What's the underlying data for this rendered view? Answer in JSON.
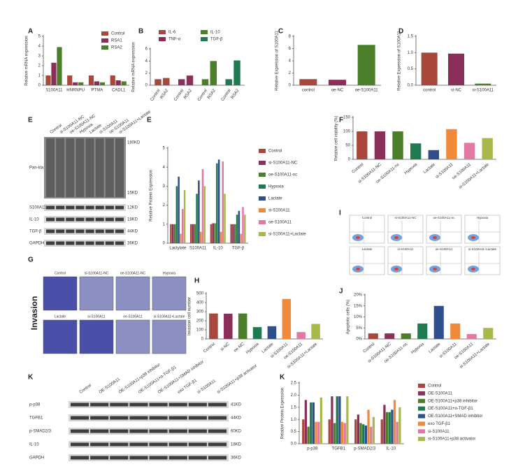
{
  "chart_data": [
    {
      "type": "bar",
      "panel": "A",
      "ylabel": "Relative mRNA expression",
      "categories": [
        "S100A11",
        "HNRNPU",
        "PTMA",
        "CADL1"
      ],
      "series": [
        {
          "name": "Control",
          "color": "#a8473b",
          "values": [
            1,
            1,
            1,
            1
          ]
        },
        {
          "name": "RSA1",
          "color": "#8a2f5a",
          "values": [
            2.3,
            0.3,
            0.4,
            0.5
          ]
        },
        {
          "name": "RSA2",
          "color": "#4c7f2a",
          "values": [
            3.9,
            0.3,
            0.3,
            0.4
          ]
        }
      ],
      "ylim": [
        0,
        5
      ],
      "yticks": [
        0,
        1,
        2,
        3,
        4,
        5
      ],
      "legend": "upper right"
    },
    {
      "type": "bar",
      "panel": "B",
      "ylabel": "Relative mRNA expression",
      "series": [
        {
          "name": "IL-6",
          "color": "#a8473b",
          "categories": [
            "Control",
            "RSA2"
          ],
          "values": [
            1,
            1.2
          ]
        },
        {
          "name": "TNF-α",
          "color": "#8a2f5a",
          "categories": [
            "Control",
            "RSA2"
          ],
          "values": [
            1,
            1.6
          ]
        },
        {
          "name": "IL-10",
          "color": "#4c7f2a",
          "categories": [
            "Control",
            "RSA2"
          ],
          "values": [
            1,
            4
          ]
        },
        {
          "name": "TGF-β",
          "color": "#1f7a52",
          "categories": [
            "Control",
            "RSA2"
          ],
          "values": [
            1,
            4.1
          ]
        }
      ],
      "ylim": [
        0,
        6
      ],
      "yticks": [
        0,
        2,
        4,
        6
      ],
      "legend": "top"
    },
    {
      "type": "bar",
      "panel": "C",
      "ylabel": "Relative Expression of S100A11",
      "categories": [
        "control",
        "oe-NC",
        "oe-S100A11"
      ],
      "values": [
        1,
        0.9,
        6.6
      ],
      "colors": [
        "#a8473b",
        "#8a2f5a",
        "#4c7f2a"
      ],
      "ylim": [
        0,
        8
      ],
      "yticks": [
        0,
        2,
        4,
        6,
        8
      ]
    },
    {
      "type": "bar",
      "panel": "D",
      "ylabel": "Relative Expression of S100A11",
      "categories": [
        "control",
        "si-NC",
        "si-S100A11"
      ],
      "values": [
        1,
        0.97,
        0.05
      ],
      "colors": [
        "#a8473b",
        "#8a2f5a",
        "#4c7f2a"
      ],
      "ylim": [
        0,
        1.5
      ],
      "yticks": [
        {
          "value": 0,
          "label": "0.0"
        },
        {
          "value": 0.5,
          "label": "0.5"
        },
        {
          "value": 1,
          "label": "1.0"
        },
        {
          "value": 1.5,
          "label": "1.5"
        }
      ]
    },
    {
      "type": "bar",
      "panel": "E",
      "ylabel": "Relative Protein Expression",
      "categories": [
        "Lactylate",
        "S100A11",
        "IL-10",
        "TGF-β"
      ],
      "series": [
        {
          "name": "Control",
          "color": "#a8473b",
          "values": [
            1,
            1,
            1,
            1
          ]
        },
        {
          "name": "si-S100A11-NC",
          "color": "#8a2f5a",
          "values": [
            1,
            1,
            1.05,
            1
          ]
        },
        {
          "name": "oe-S100A11-nc",
          "color": "#4c7f2a",
          "values": [
            1,
            1,
            1.05,
            1
          ]
        },
        {
          "name": "Hypoxia",
          "color": "#1f7a52",
          "values": [
            3,
            2.6,
            4.2,
            1.5
          ]
        },
        {
          "name": "Lactate",
          "color": "#2f4f8c",
          "values": [
            3.5,
            3.3,
            4.4,
            1.7
          ]
        },
        {
          "name": "si-S100A11",
          "color": "#f0893a",
          "values": [
            0.5,
            0.6,
            0.6,
            0.5
          ]
        },
        {
          "name": "oe-S100A11",
          "color": "#e07aa2",
          "values": [
            1.8,
            3.9,
            4.3,
            1.9
          ]
        },
        {
          "name": "si-S100A11+Lactate",
          "color": "#a9b84b",
          "values": [
            2.8,
            3,
            2.6,
            1.5
          ]
        }
      ],
      "ylim": [
        0,
        5
      ],
      "yticks": [
        0,
        1,
        2,
        3,
        4,
        5
      ],
      "legend": "right"
    },
    {
      "type": "bar",
      "panel": "F",
      "ylabel": "Relative cell viability (%)",
      "categories": [
        "Control",
        "si-S100A11-NC",
        "oe-S100A11-nc",
        "Hypoxia",
        "Lactate",
        "si-S100A11",
        "oe-S100A11",
        "si-S100A11+Lactate"
      ],
      "values": [
        100,
        100,
        100,
        57,
        33,
        108,
        59,
        76
      ],
      "colors": [
        "#a8473b",
        "#8a2f5a",
        "#4c7f2a",
        "#1f7a52",
        "#2f4f8c",
        "#f0893a",
        "#e07aa2",
        "#a9b84b"
      ],
      "ylim": [
        0,
        150
      ],
      "yticks": [
        0,
        50,
        100,
        150
      ]
    },
    {
      "type": "bar",
      "panel": "H",
      "ylabel": "Invasion cell number",
      "categories": [
        "Control",
        "si-NC",
        "oe-NC",
        "Hypoxia",
        "Lactate",
        "si-S100A11",
        "oe-S100A11",
        "si-S100A11+Lactate"
      ],
      "values": [
        280,
        278,
        280,
        130,
        140,
        440,
        75,
        165
      ],
      "colors": [
        "#a8473b",
        "#8a2f5a",
        "#4c7f2a",
        "#1f7a52",
        "#2f4f8c",
        "#f0893a",
        "#e07aa2",
        "#a9b84b"
      ],
      "ylim": [
        0,
        500
      ],
      "yticks": [
        0,
        100,
        200,
        300,
        400,
        500
      ]
    },
    {
      "type": "bar",
      "panel": "J",
      "ylabel": "Apoptotic cells (%)",
      "categories": [
        "Control",
        "si-S100A11-NC",
        "oe-S100A11-nc",
        "Hypoxia",
        "Lactate",
        "si-S100A11",
        "oe-S100A11",
        "si-S100A11+Lactate"
      ],
      "values": [
        2.5,
        2.5,
        2.5,
        7,
        15,
        7,
        2.2,
        5
      ],
      "colors": [
        "#a8473b",
        "#8a2f5a",
        "#4c7f2a",
        "#1f7a52",
        "#2f4f8c",
        "#f0893a",
        "#e07aa2",
        "#a9b84b"
      ],
      "ylim": [
        0,
        20
      ],
      "yticks": [
        {
          "value": 0,
          "label": "0%"
        },
        {
          "value": 5,
          "label": "5%"
        },
        {
          "value": 10,
          "label": "10%"
        },
        {
          "value": 15,
          "label": "15%"
        },
        {
          "value": 20,
          "label": "20%"
        }
      ]
    },
    {
      "type": "bar",
      "panel": "K",
      "ylabel": "Relative Protein Expression",
      "categories": [
        "p-p38",
        "TGFB1",
        "p-SMAD2/3",
        "IL-10"
      ],
      "series": [
        {
          "name": "Control",
          "color": "#a8473b",
          "values": [
            1,
            1,
            1,
            1
          ]
        },
        {
          "name": "OE-S100A11",
          "color": "#8a2f5a",
          "values": [
            1.8,
            1.95,
            1.2,
            1.6
          ]
        },
        {
          "name": "OE-S100A11+p38 inhibitor",
          "color": "#4c7f2a",
          "values": [
            0.7,
            0.85,
            0.85,
            1.3
          ]
        },
        {
          "name": "OE-S100A11+α-TGF-β1",
          "color": "#1f7a52",
          "values": [
            1.7,
            1.95,
            0.8,
            1.3
          ]
        },
        {
          "name": "OE-S100A11+SMAD inhibitor",
          "color": "#2f4f8c",
          "values": [
            1.7,
            1.95,
            0.75,
            1.4
          ]
        },
        {
          "name": "exo TGF-β1",
          "color": "#f0893a",
          "values": [
            0.9,
            0.9,
            1.4,
            1.8
          ]
        },
        {
          "name": "si-S100A11",
          "color": "#e07aa2",
          "values": [
            0.9,
            0.85,
            0.7,
            0.9
          ]
        },
        {
          "name": "si-S100A11+p38 activator",
          "color": "#a9b84b",
          "values": [
            1.9,
            1.95,
            1.1,
            1.5
          ]
        }
      ],
      "ylim": [
        0,
        2.5
      ],
      "yticks": [
        {
          "value": 0,
          "label": "0.0"
        },
        {
          "value": 0.5,
          "label": "0.5"
        },
        {
          "value": 1,
          "label": "1.0"
        },
        {
          "value": 1.5,
          "label": "1.5"
        },
        {
          "value": 2,
          "label": "2.0"
        },
        {
          "value": 2.5,
          "label": "2.5"
        }
      ],
      "legend": "right"
    }
  ],
  "image_panels": [
    {
      "panel": "E",
      "lanes": [
        "Control",
        "si-S100A11-NC",
        "oe-S100A11-NC",
        "Hypoxia",
        "Lactate",
        "si-S100A11",
        "oe-S100A11",
        "si-S100A11+Lactate"
      ],
      "rows": [
        {
          "name": "Pan-kla",
          "markers": [
            "180KD",
            "15KD"
          ]
        },
        {
          "name": "S100A11",
          "markers": [
            "12KD"
          ]
        },
        {
          "name": "IL-10",
          "markers": [
            "18KD"
          ]
        },
        {
          "name": "TGF-β",
          "markers": [
            "44KD"
          ]
        },
        {
          "name": "GAPDH",
          "markers": [
            "36KD"
          ]
        }
      ]
    },
    {
      "panel": "G",
      "side_label": "Invasion",
      "labels": [
        "Control",
        "si-S100A11-NC",
        "oe-S100A11-NC",
        "Hypoxia",
        "Lactate",
        "si-S100A11",
        "oe-S100A11",
        "si-S100A11+Lactate"
      ]
    },
    {
      "panel": "I",
      "labels": [
        "Control",
        "si-S100A11-NC",
        "oe-S100A11-nc",
        "Hypoxia",
        "Lactate",
        "si-S100A11",
        "oe-S100A11",
        "si-S100A11+Lactate"
      ]
    },
    {
      "panel": "K",
      "lanes": [
        "Control",
        "OE-S100A11",
        "OE-S100A11+p38 inhibitor",
        "OE-S100A11+α-TGF-β1",
        "OE-S100A11+SMAD inhibitor",
        "exo TGF-β1",
        "si-S100A11",
        "si-S100A11+p38 activator"
      ],
      "rows": [
        {
          "name": "p-p38",
          "markers": [
            "41KD"
          ]
        },
        {
          "name": "TGFB1",
          "markers": [
            "44KD"
          ]
        },
        {
          "name": "p-SMAD2/3",
          "markers": [
            "60KD"
          ]
        },
        {
          "name": "IL-10",
          "markers": [
            "18KD"
          ]
        },
        {
          "name": "GAPDH",
          "markers": [
            "36KD"
          ]
        }
      ]
    }
  ]
}
